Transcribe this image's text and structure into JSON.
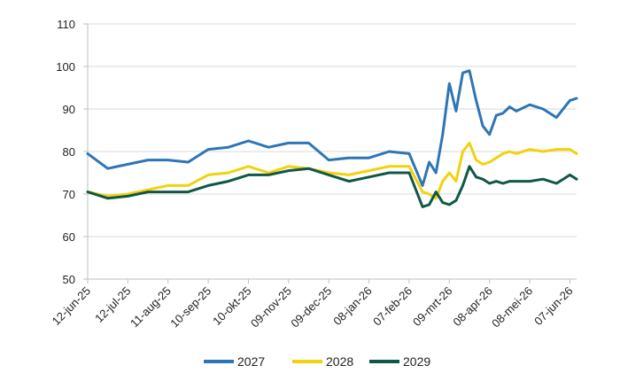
{
  "chart_data": {
    "type": "line",
    "title": "",
    "xlabel": "",
    "ylabel": "",
    "ylim": [
      50,
      110
    ],
    "yticks": [
      50,
      60,
      70,
      80,
      90,
      100,
      110
    ],
    "grid": "horizontal",
    "legend_position": "bottom-center",
    "x_tick_labels": [
      "12-jun-25",
      "12-jul-25",
      "11-aug-25",
      "10-sep-25",
      "10-okt-25",
      "09-nov-25",
      "09-dec-25",
      "08-jan-26",
      "07-feb-26",
      "09-mrt-26",
      "08-apr-26",
      "08-mei-26",
      "07-jun-26"
    ],
    "x": [
      "12-jun-25",
      "27-jun-25",
      "12-jul-25",
      "27-jul-25",
      "11-aug-25",
      "26-aug-25",
      "10-sep-25",
      "25-sep-25",
      "10-okt-25",
      "25-okt-25",
      "09-nov-25",
      "24-nov-25",
      "09-dec-25",
      "24-dec-25",
      "08-jan-26",
      "23-jan-26",
      "07-feb-26",
      "17-feb-26",
      "22-feb-26",
      "27-feb-26",
      "04-mrt-26",
      "09-mrt-26",
      "14-mrt-26",
      "19-mrt-26",
      "24-mrt-26",
      "29-mrt-26",
      "03-apr-26",
      "08-apr-26",
      "13-apr-26",
      "18-apr-26",
      "23-apr-26",
      "28-apr-26",
      "08-mei-26",
      "18-mei-26",
      "28-mei-26",
      "07-jun-26",
      "12-jun-26"
    ],
    "series": [
      {
        "name": "2027",
        "color": "#2e75b6",
        "values": [
          79.5,
          76.0,
          77.0,
          78.0,
          78.0,
          77.5,
          80.5,
          81.0,
          82.5,
          81.0,
          82.0,
          82.0,
          78.0,
          78.5,
          78.5,
          80.0,
          79.5,
          72.0,
          77.5,
          75.0,
          84.0,
          96.0,
          89.5,
          98.5,
          99.0,
          92.0,
          86.0,
          84.0,
          88.5,
          89.0,
          90.5,
          89.5,
          91.0,
          90.0,
          88.0,
          92.0,
          92.5
        ]
      },
      {
        "name": "2028",
        "color": "#f2d20c",
        "values": [
          70.5,
          69.5,
          70.0,
          71.0,
          72.0,
          72.0,
          74.5,
          75.0,
          76.5,
          75.0,
          76.5,
          76.0,
          75.0,
          74.5,
          75.5,
          76.5,
          76.5,
          70.5,
          70.0,
          69.0,
          73.0,
          75.0,
          73.0,
          80.0,
          82.0,
          78.0,
          77.0,
          77.5,
          78.5,
          79.5,
          80.0,
          79.5,
          80.5,
          80.0,
          80.5,
          80.5,
          79.5
        ]
      },
      {
        "name": "2029",
        "color": "#0f5848",
        "values": [
          70.5,
          69.0,
          69.5,
          70.5,
          70.5,
          70.5,
          72.0,
          73.0,
          74.5,
          74.5,
          75.5,
          76.0,
          74.5,
          73.0,
          74.0,
          75.0,
          75.0,
          67.0,
          67.5,
          70.5,
          68.0,
          67.5,
          68.5,
          72.0,
          76.5,
          74.0,
          73.5,
          72.5,
          73.0,
          72.5,
          73.0,
          73.0,
          73.0,
          73.5,
          72.5,
          74.5,
          73.5
        ]
      }
    ]
  }
}
